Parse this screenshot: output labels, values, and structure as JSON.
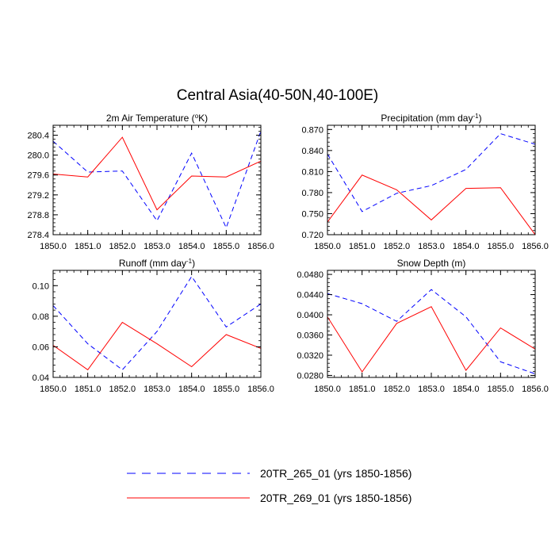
{
  "title": "Central Asia(40-50N,40-100E)",
  "legend": {
    "placement": "bottom-center",
    "entries": [
      {
        "label": "20TR_265_01 (yrs 1850-1856)",
        "color": "#0000ff",
        "dash": true
      },
      {
        "label": "20TR_269_01 (yrs 1850-1856)",
        "color": "#ff0000",
        "dash": false
      }
    ]
  },
  "chart_data": [
    {
      "type": "line",
      "title_parts": [
        "2m Air Temperature (",
        "o",
        "K)"
      ],
      "x": [
        1850,
        1851,
        1852,
        1853,
        1854,
        1855,
        1856
      ],
      "xticks": [
        "1850.0",
        "1851.0",
        "1852.0",
        "1853.0",
        "1854.0",
        "1855.0",
        "1856.0"
      ],
      "xlim": [
        1850,
        1856
      ],
      "ylim": [
        278.4,
        280.6
      ],
      "yticks": [
        278.4,
        278.8,
        279.2,
        279.6,
        280.0,
        280.4
      ],
      "yticklabels": [
        "278.4",
        "278.8",
        "279.2",
        "279.6",
        "280.0",
        "280.4"
      ],
      "series": [
        {
          "name": "20TR_265_01 (yrs 1850-1856)",
          "values": [
            280.28,
            279.66,
            279.68,
            278.68,
            280.04,
            278.54,
            280.48
          ]
        },
        {
          "name": "20TR_269_01 (yrs 1850-1856)",
          "values": [
            279.62,
            279.56,
            280.36,
            278.9,
            279.58,
            279.56,
            279.88
          ]
        }
      ]
    },
    {
      "type": "line",
      "title_parts": [
        "Precipitation (mm day",
        "-1",
        ")"
      ],
      "x": [
        1850,
        1851,
        1852,
        1853,
        1854,
        1855,
        1856
      ],
      "xticks": [
        "1850.0",
        "1851.0",
        "1852.0",
        "1853.0",
        "1854.0",
        "1855.0",
        "1856.0"
      ],
      "xlim": [
        1850,
        1856
      ],
      "ylim": [
        0.72,
        0.876
      ],
      "yticks": [
        0.72,
        0.75,
        0.78,
        0.81,
        0.84,
        0.87
      ],
      "yticklabels": [
        "0.720",
        "0.750",
        "0.780",
        "0.810",
        "0.840",
        "0.870"
      ],
      "series": [
        {
          "name": "20TR_265_01 (yrs 1850-1856)",
          "values": [
            0.835,
            0.753,
            0.779,
            0.79,
            0.813,
            0.864,
            0.849
          ]
        },
        {
          "name": "20TR_269_01 (yrs 1850-1856)",
          "values": [
            0.738,
            0.805,
            0.784,
            0.741,
            0.786,
            0.787,
            0.72
          ]
        }
      ]
    },
    {
      "type": "line",
      "title_parts": [
        "Runoff (mm day",
        "-1",
        ")"
      ],
      "x": [
        1850,
        1851,
        1852,
        1853,
        1854,
        1855,
        1856
      ],
      "xticks": [
        "1850.0",
        "1851.0",
        "1852.0",
        "1853.0",
        "1854.0",
        "1855.0",
        "1856.0"
      ],
      "xlim": [
        1850,
        1856
      ],
      "ylim": [
        0.04,
        0.11
      ],
      "yticks": [
        0.04,
        0.06,
        0.08,
        0.1
      ],
      "yticklabels": [
        "0.04",
        "0.06",
        "0.08",
        "0.10"
      ],
      "series": [
        {
          "name": "20TR_265_01 (yrs 1850-1856)",
          "values": [
            0.087,
            0.062,
            0.045,
            0.07,
            0.106,
            0.073,
            0.088
          ]
        },
        {
          "name": "20TR_269_01 (yrs 1850-1856)",
          "values": [
            0.061,
            0.045,
            0.076,
            0.062,
            0.047,
            0.068,
            0.059
          ]
        }
      ]
    },
    {
      "type": "line",
      "title_parts": [
        "Snow Depth (m)"
      ],
      "x": [
        1850,
        1851,
        1852,
        1853,
        1854,
        1855,
        1856
      ],
      "xticks": [
        "1850.0",
        "1851.0",
        "1852.0",
        "1853.0",
        "1854.0",
        "1855.0",
        "1856.0"
      ],
      "xlim": [
        1850,
        1856
      ],
      "ylim": [
        0.0276,
        0.0488
      ],
      "yticks": [
        0.028,
        0.032,
        0.036,
        0.04,
        0.044,
        0.048
      ],
      "yticklabels": [
        "0.0280",
        "0.0320",
        "0.0360",
        "0.0400",
        "0.0440",
        "0.0480"
      ],
      "series": [
        {
          "name": "20TR_265_01 (yrs 1850-1856)",
          "values": [
            0.0442,
            0.0422,
            0.0387,
            0.045,
            0.0396,
            0.0307,
            0.0283
          ]
        },
        {
          "name": "20TR_269_01 (yrs 1850-1856)",
          "values": [
            0.0396,
            0.0287,
            0.0383,
            0.0416,
            0.029,
            0.0374,
            0.0332
          ]
        }
      ]
    }
  ]
}
